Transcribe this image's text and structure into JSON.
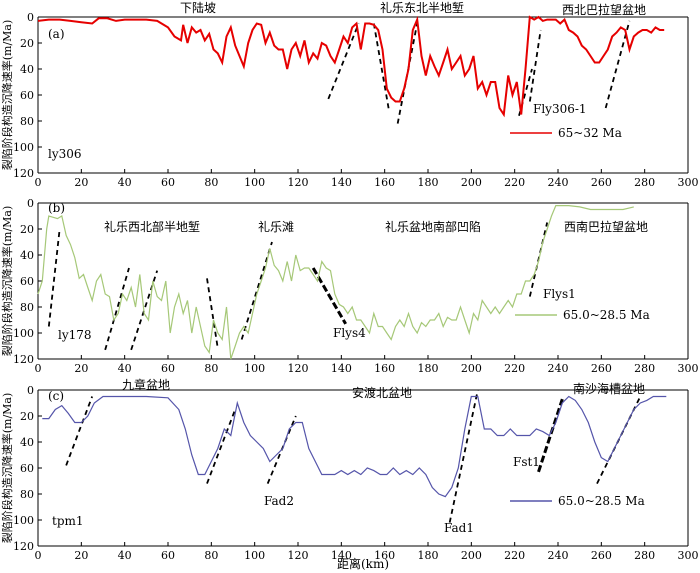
{
  "chart_data": [
    {
      "type": "line",
      "panel": "(a)",
      "ylabel": "裂陷阶段构造沉降速率(m/Ma)",
      "xlim": [
        0,
        300
      ],
      "ylim": [
        0,
        120
      ],
      "y_inverted": true,
      "x_ticks": [
        0,
        20,
        40,
        60,
        80,
        100,
        120,
        140,
        160,
        180,
        200,
        220,
        240,
        260,
        280,
        300
      ],
      "y_ticks": [
        0,
        20,
        40,
        60,
        80,
        100,
        120
      ],
      "series": [
        {
          "name": "65~32 Ma",
          "color": "#e60000",
          "x": [
            0,
            5,
            10,
            15,
            20,
            25,
            28,
            32,
            36,
            40,
            45,
            50,
            55,
            60,
            63,
            66,
            67,
            69,
            71,
            73,
            75,
            77,
            79,
            81,
            83,
            85,
            87,
            89,
            91,
            93,
            95,
            97,
            99,
            101,
            103,
            105,
            107,
            109,
            111,
            113,
            115,
            117,
            119,
            121,
            123,
            125,
            127,
            129,
            131,
            133,
            135,
            137,
            139,
            141,
            143,
            145,
            147,
            149,
            151,
            153,
            155,
            157,
            159,
            161,
            163,
            165,
            167,
            169,
            171,
            173,
            175,
            177,
            179,
            181,
            183,
            185,
            187,
            189,
            191,
            193,
            195,
            197,
            199,
            201,
            203,
            205,
            207,
            209,
            211,
            213,
            215,
            217,
            219,
            221,
            223,
            225,
            227,
            229,
            231,
            233,
            235,
            237,
            239,
            241,
            243,
            245,
            247,
            249,
            251,
            253,
            255,
            257,
            259,
            261,
            263,
            265,
            267,
            269,
            271,
            273,
            275,
            277,
            279,
            281,
            283,
            285,
            287,
            289
          ],
          "y": [
            3,
            2,
            2,
            3,
            4,
            5,
            1,
            1,
            3,
            2,
            2,
            2,
            3,
            8,
            15,
            18,
            6,
            20,
            8,
            12,
            10,
            18,
            13,
            25,
            28,
            35,
            15,
            8,
            22,
            30,
            38,
            20,
            10,
            5,
            6,
            20,
            12,
            22,
            25,
            25,
            40,
            25,
            20,
            30,
            18,
            35,
            28,
            32,
            20,
            22,
            30,
            35,
            25,
            15,
            20,
            8,
            5,
            25,
            5,
            5,
            6,
            10,
            25,
            55,
            62,
            65,
            65,
            55,
            40,
            10,
            2,
            30,
            45,
            30,
            38,
            45,
            35,
            25,
            40,
            35,
            30,
            45,
            40,
            30,
            55,
            50,
            60,
            50,
            50,
            70,
            75,
            45,
            60,
            50,
            75,
            40,
            0,
            2,
            0,
            3,
            2,
            2,
            2,
            5,
            2,
            10,
            12,
            15,
            22,
            25,
            30,
            35,
            35,
            30,
            25,
            15,
            12,
            8,
            10,
            25,
            15,
            12,
            10,
            10,
            12,
            8,
            10,
            10
          ]
        }
      ],
      "annotations": [
        "下陆坡",
        "礼乐东北半地堑",
        "西北巴拉望盆地",
        "Fly306-1",
        "ly306"
      ]
    },
    {
      "type": "line",
      "panel": "(b)",
      "ylabel": "裂陷阶段构造沉降速率(m/Ma)",
      "xlim": [
        0,
        300
      ],
      "ylim": [
        0,
        120
      ],
      "y_inverted": true,
      "x_ticks": [
        0,
        20,
        40,
        60,
        80,
        100,
        120,
        140,
        160,
        180,
        200,
        220,
        240,
        260,
        280,
        300
      ],
      "y_ticks": [
        0,
        20,
        40,
        60,
        80,
        100,
        120
      ],
      "series": [
        {
          "name": "65.0~28.5 Ma",
          "color": "#a6c878",
          "x": [
            0,
            2,
            4,
            5,
            7,
            9,
            11,
            13,
            15,
            17,
            19,
            21,
            23,
            25,
            27,
            29,
            31,
            33,
            35,
            37,
            39,
            41,
            43,
            45,
            47,
            49,
            51,
            53,
            55,
            57,
            59,
            61,
            63,
            65,
            67,
            69,
            71,
            73,
            75,
            77,
            79,
            81,
            83,
            85,
            87,
            89,
            91,
            93,
            95,
            97,
            99,
            101,
            103,
            105,
            107,
            109,
            111,
            113,
            115,
            117,
            119,
            121,
            123,
            125,
            127,
            129,
            131,
            133,
            135,
            137,
            139,
            141,
            143,
            145,
            147,
            149,
            151,
            153,
            155,
            157,
            159,
            161,
            163,
            165,
            167,
            169,
            171,
            173,
            175,
            177,
            179,
            181,
            183,
            185,
            187,
            189,
            191,
            193,
            195,
            197,
            199,
            201,
            203,
            205,
            207,
            209,
            211,
            213,
            215,
            217,
            219,
            221,
            223,
            225,
            227,
            229,
            231,
            233,
            235,
            237,
            239,
            241,
            243,
            245,
            250,
            255,
            260,
            265,
            270,
            275
          ],
          "y": [
            70,
            60,
            20,
            10,
            11,
            12,
            10,
            25,
            32,
            42,
            58,
            55,
            65,
            75,
            60,
            55,
            70,
            72,
            90,
            85,
            70,
            75,
            65,
            80,
            55,
            85,
            90,
            60,
            72,
            75,
            60,
            100,
            80,
            70,
            85,
            75,
            100,
            80,
            95,
            110,
            115,
            90,
            100,
            105,
            80,
            120,
            110,
            100,
            95,
            100,
            85,
            70,
            60,
            50,
            35,
            48,
            52,
            60,
            45,
            60,
            40,
            52,
            50,
            50,
            55,
            60,
            45,
            50,
            52,
            70,
            78,
            80,
            85,
            80,
            90,
            90,
            95,
            100,
            85,
            95,
            95,
            100,
            105,
            95,
            90,
            95,
            85,
            95,
            100,
            92,
            95,
            90,
            90,
            85,
            95,
            88,
            90,
            90,
            80,
            90,
            100,
            85,
            90,
            75,
            80,
            85,
            80,
            85,
            80,
            75,
            80,
            70,
            70,
            60,
            60,
            55,
            45,
            30,
            20,
            10,
            2,
            2,
            2,
            2,
            3,
            5,
            5,
            5,
            5,
            3
          ]
        }
      ],
      "annotations": [
        "礼乐西北部半地堑",
        "礼乐滩",
        "礼乐盆地南部凹陷",
        "西南巴拉望盆地",
        "Flys4",
        "Flys1",
        "ly178"
      ]
    },
    {
      "type": "line",
      "panel": "(c)",
      "ylabel": "裂陷阶段构造沉降速率(m/Ma)",
      "xlim": [
        0,
        300
      ],
      "ylim": [
        0,
        120
      ],
      "y_inverted": true,
      "x_ticks": [
        0,
        20,
        40,
        60,
        80,
        100,
        120,
        140,
        160,
        180,
        200,
        220,
        240,
        260,
        280,
        300
      ],
      "y_ticks": [
        0,
        20,
        40,
        60,
        80,
        100,
        120
      ],
      "series": [
        {
          "name": "65.0~28.5 Ma",
          "color": "#5555aa",
          "x": [
            2,
            5,
            8,
            11,
            14,
            17,
            20,
            23,
            26,
            30,
            35,
            40,
            50,
            60,
            65,
            68,
            71,
            74,
            77,
            80,
            83,
            86,
            89,
            92,
            95,
            98,
            101,
            104,
            107,
            110,
            113,
            116,
            119,
            122,
            125,
            128,
            131,
            134,
            137,
            140,
            143,
            146,
            149,
            152,
            155,
            158,
            161,
            164,
            167,
            170,
            173,
            176,
            179,
            182,
            185,
            188,
            191,
            194,
            197,
            200,
            203,
            206,
            209,
            212,
            215,
            218,
            221,
            224,
            227,
            230,
            233,
            236,
            239,
            242,
            245,
            248,
            251,
            254,
            257,
            260,
            263,
            266,
            269,
            272,
            275,
            278,
            281,
            284,
            287,
            290
          ],
          "y": [
            22,
            22,
            15,
            12,
            18,
            25,
            25,
            20,
            10,
            5,
            5,
            5,
            5,
            6,
            15,
            30,
            50,
            65,
            65,
            55,
            45,
            30,
            35,
            10,
            25,
            35,
            40,
            45,
            55,
            50,
            45,
            30,
            25,
            25,
            45,
            55,
            65,
            65,
            65,
            62,
            65,
            62,
            65,
            60,
            62,
            65,
            65,
            60,
            65,
            62,
            65,
            60,
            65,
            75,
            80,
            82,
            75,
            60,
            30,
            5,
            5,
            30,
            30,
            35,
            35,
            30,
            35,
            35,
            35,
            30,
            32,
            35,
            25,
            10,
            5,
            8,
            15,
            25,
            40,
            52,
            55,
            45,
            35,
            25,
            15,
            10,
            8,
            5,
            5,
            5
          ]
        }
      ],
      "annotations": [
        "九章盆地",
        "安渡北盆地",
        "南沙海槽盆地",
        "Fad2",
        "Fad1",
        "Fst1",
        "tpm1"
      ]
    }
  ],
  "panels": [
    {
      "tag": "(a)",
      "well": "ly306",
      "region_labels": [
        "下陆坡",
        "礼乐东北半地堑",
        "西北巴拉望盆地"
      ],
      "fault_label": "Fly306-1",
      "legend": "65~32 Ma"
    },
    {
      "tag": "(b)",
      "well": "ly178",
      "region_labels": [
        "礼乐西北部半地堑",
        "礼乐滩",
        "礼乐盆地南部凹陷",
        "西南巴拉望盆地"
      ],
      "fault_labels": [
        "Flys4",
        "Flys1"
      ],
      "legend": "65.0~28.5 Ma"
    },
    {
      "tag": "(c)",
      "well": "tpm1",
      "region_labels": [
        "九章盆地",
        "安渡北盆地",
        "南沙海槽盆地"
      ],
      "fault_labels": [
        "Fad2",
        "Fad1",
        "Fst1"
      ],
      "legend": "65.0~28.5 Ma"
    }
  ],
  "xlabel": "距离(km)",
  "faults": [
    [
      {
        "x1": 134,
        "y1": 63,
        "x2": 148,
        "y2": 5,
        "bold": false
      },
      {
        "x1": 155,
        "y1": 5,
        "x2": 162,
        "y2": 72,
        "bold": false
      },
      {
        "x1": 166,
        "y1": 82,
        "x2": 175,
        "y2": 5,
        "bold": false
      },
      {
        "x1": 222,
        "y1": 76,
        "x2": 228,
        "y2": 40,
        "bold": false
      },
      {
        "x1": 227,
        "y1": 65,
        "x2": 232,
        "y2": 10,
        "bold": false
      },
      {
        "x1": 262,
        "y1": 70,
        "x2": 273,
        "y2": 3,
        "bold": false
      }
    ],
    [
      {
        "x1": 5,
        "y1": 95,
        "x2": 10,
        "y2": 20,
        "bold": false
      },
      {
        "x1": 31,
        "y1": 113,
        "x2": 42,
        "y2": 50,
        "bold": false
      },
      {
        "x1": 43,
        "y1": 113,
        "x2": 55,
        "y2": 52,
        "bold": false
      },
      {
        "x1": 78,
        "y1": 58,
        "x2": 83,
        "y2": 112,
        "bold": false
      },
      {
        "x1": 94,
        "y1": 105,
        "x2": 108,
        "y2": 30,
        "bold": false
      },
      {
        "x1": 127,
        "y1": 50,
        "x2": 142,
        "y2": 93,
        "bold": true
      },
      {
        "x1": 227,
        "y1": 72,
        "x2": 235,
        "y2": 15,
        "bold": false
      }
    ],
    [
      {
        "x1": 13,
        "y1": 58,
        "x2": 25,
        "y2": 5,
        "bold": false
      },
      {
        "x1": 78,
        "y1": 72,
        "x2": 91,
        "y2": 15,
        "bold": false
      },
      {
        "x1": 106,
        "y1": 72,
        "x2": 119,
        "y2": 20,
        "bold": false
      },
      {
        "x1": 190,
        "y1": 102,
        "x2": 203,
        "y2": 0,
        "bold": false
      },
      {
        "x1": 231,
        "y1": 63,
        "x2": 242,
        "y2": 7,
        "bold": true
      },
      {
        "x1": 258,
        "y1": 72,
        "x2": 278,
        "y2": 5,
        "bold": false
      }
    ]
  ]
}
